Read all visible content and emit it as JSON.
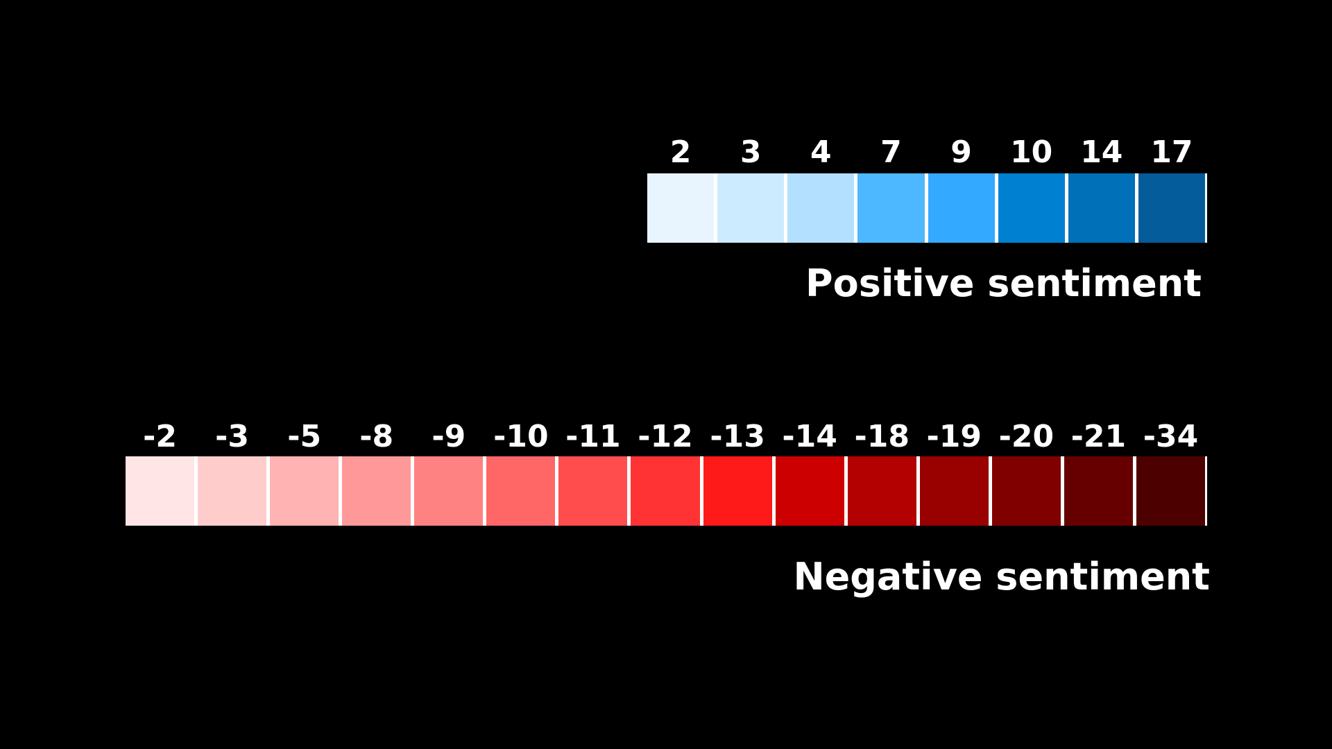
{
  "legends": [
    {
      "key": "positive",
      "caption": "Positive sentiment",
      "steps": [
        {
          "label": "2",
          "color": "#E8F5FF"
        },
        {
          "label": "3",
          "color": "#CCEBFF"
        },
        {
          "label": "4",
          "color": "#B3E0FF"
        },
        {
          "label": "7",
          "color": "#4DB8FF"
        },
        {
          "label": "9",
          "color": "#33AAFF"
        },
        {
          "label": "10",
          "color": "#0080D0"
        },
        {
          "label": "14",
          "color": "#0070B8"
        },
        {
          "label": "17",
          "color": "#055C9A"
        }
      ]
    },
    {
      "key": "negative",
      "caption": "Negative sentiment",
      "steps": [
        {
          "label": "-2",
          "color": "#FFE5E5"
        },
        {
          "label": "-3",
          "color": "#FFCCCC"
        },
        {
          "label": "-5",
          "color": "#FFB3B3"
        },
        {
          "label": "-8",
          "color": "#FF9999"
        },
        {
          "label": "-9",
          "color": "#FF8282"
        },
        {
          "label": "-10",
          "color": "#FF6666"
        },
        {
          "label": "-11",
          "color": "#FF4D4D"
        },
        {
          "label": "-12",
          "color": "#FF3333"
        },
        {
          "label": "-13",
          "color": "#FF1A1A"
        },
        {
          "label": "-14",
          "color": "#CC0000"
        },
        {
          "label": "-18",
          "color": "#B30000"
        },
        {
          "label": "-19",
          "color": "#990000"
        },
        {
          "label": "-20",
          "color": "#800000"
        },
        {
          "label": "-21",
          "color": "#660000"
        },
        {
          "label": "-34",
          "color": "#4D0000"
        }
      ]
    }
  ]
}
